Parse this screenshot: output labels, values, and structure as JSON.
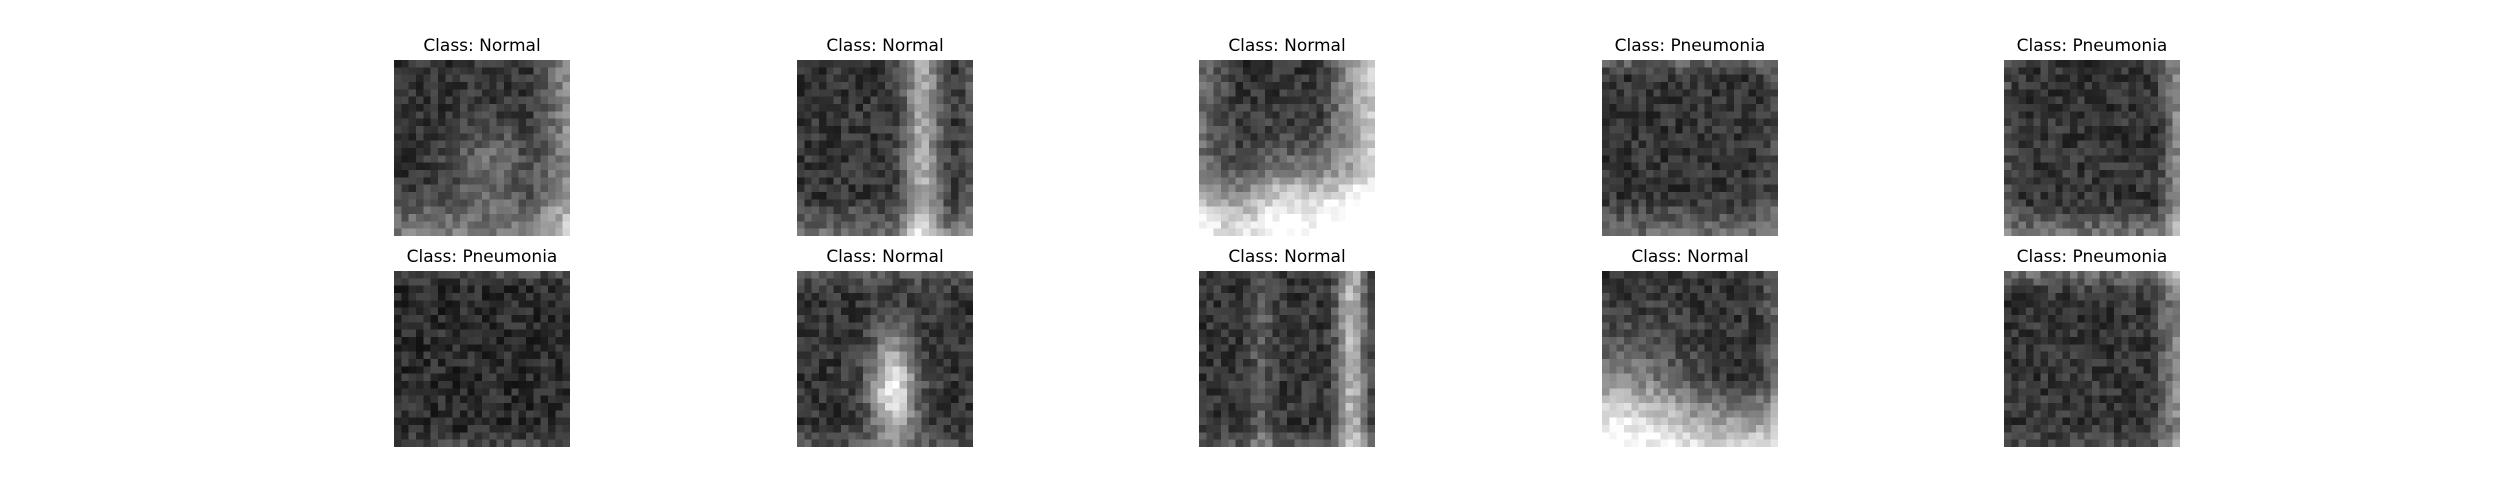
{
  "figure": {
    "panels": [
      {
        "title": "Class: Normal",
        "pattern": "normal-a"
      },
      {
        "title": "Class: Normal",
        "pattern": "normal-b"
      },
      {
        "title": "Class: Normal",
        "pattern": "normal-c"
      },
      {
        "title": "Class: Pneumonia",
        "pattern": "pneumonia-a"
      },
      {
        "title": "Class: Pneumonia",
        "pattern": "pneumonia-b"
      },
      {
        "title": "Class: Pneumonia",
        "pattern": "pneumonia-c"
      },
      {
        "title": "Class: Normal",
        "pattern": "normal-d"
      },
      {
        "title": "Class: Normal",
        "pattern": "normal-e"
      },
      {
        "title": "Class: Normal",
        "pattern": "normal-f"
      },
      {
        "title": "Class: Pneumonia",
        "pattern": "pneumonia-d"
      }
    ]
  }
}
